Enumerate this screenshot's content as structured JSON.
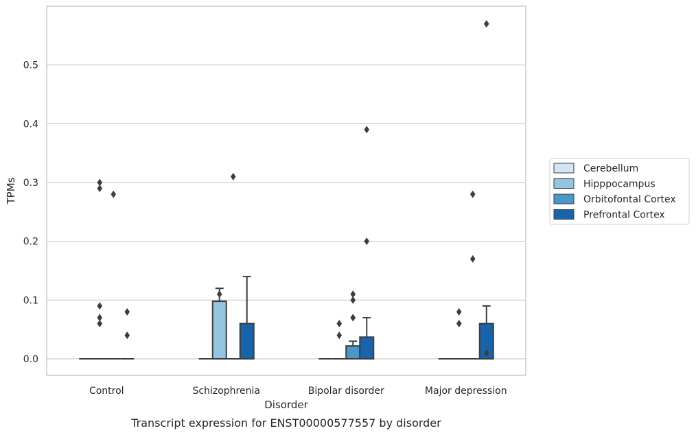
{
  "caption": "Transcript expression for ENST00000577557 by disorder",
  "chart_data": {
    "type": "box",
    "xlabel": "Disorder",
    "ylabel": "TPMs",
    "ylim": [
      -0.028,
      0.6
    ],
    "y_ticks": [
      0.0,
      0.1,
      0.2,
      0.3,
      0.4,
      0.5
    ],
    "y_tick_labels": [
      "0.0",
      "0.1",
      "0.2",
      "0.3",
      "0.4",
      "0.5"
    ],
    "grid": "horizontal",
    "legend_position": "right",
    "categories": [
      "Control",
      "Schizophrenia",
      "Bipolar disorder",
      "Major depression"
    ],
    "series": [
      {
        "name": "Cerebellum",
        "color": "#d3e4f3",
        "boxes": [
          {
            "q1": 0,
            "median": 0,
            "q3": 0,
            "whisker_low": 0,
            "whisker_high": 0,
            "outliers": []
          },
          {
            "q1": 0,
            "median": 0,
            "q3": 0,
            "whisker_low": 0,
            "whisker_high": 0,
            "outliers": []
          },
          {
            "q1": 0,
            "median": 0,
            "q3": 0,
            "whisker_low": 0,
            "whisker_high": 0,
            "outliers": []
          },
          {
            "q1": 0,
            "median": 0,
            "q3": 0,
            "whisker_low": 0,
            "whisker_high": 0,
            "outliers": []
          }
        ]
      },
      {
        "name": "Hipppocampus",
        "color": "#94c4df",
        "boxes": [
          {
            "q1": 0,
            "median": 0,
            "q3": 0,
            "whisker_low": 0,
            "whisker_high": 0,
            "outliers": [
              0.09,
              0.07,
              0.06,
              0.3,
              0.29
            ]
          },
          {
            "q1": 0,
            "median": 0,
            "q3": 0.098,
            "whisker_low": 0,
            "whisker_high": 0.12,
            "outliers": [
              0.11
            ]
          },
          {
            "q1": 0,
            "median": 0,
            "q3": 0,
            "whisker_low": 0,
            "whisker_high": 0,
            "outliers": [
              0.06,
              0.04
            ]
          },
          {
            "q1": 0,
            "median": 0,
            "q3": 0,
            "whisker_low": 0,
            "whisker_high": 0,
            "outliers": [
              0.08,
              0.06
            ]
          }
        ]
      },
      {
        "name": "Orbitofontal Cortex",
        "color": "#4a98c9",
        "boxes": [
          {
            "q1": 0,
            "median": 0,
            "q3": 0,
            "whisker_low": 0,
            "whisker_high": 0,
            "outliers": [
              0.28
            ]
          },
          {
            "q1": 0,
            "median": 0,
            "q3": 0,
            "whisker_low": 0,
            "whisker_high": 0,
            "outliers": [
              0.31
            ]
          },
          {
            "q1": 0,
            "median": 0,
            "q3": 0.022,
            "whisker_low": 0,
            "whisker_high": 0.03,
            "outliers": [
              0.07,
              0.11,
              0.1,
              0.07
            ]
          },
          {
            "q1": 0,
            "median": 0,
            "q3": 0,
            "whisker_low": 0,
            "whisker_high": 0,
            "outliers": [
              0.28,
              0.17
            ]
          }
        ]
      },
      {
        "name": "Prefrontal Cortex",
        "color": "#1764ab",
        "boxes": [
          {
            "q1": 0,
            "median": 0,
            "q3": 0,
            "whisker_low": 0,
            "whisker_high": 0,
            "outliers": [
              0.08,
              0.04
            ]
          },
          {
            "q1": 0,
            "median": 0,
            "q3": 0.06,
            "whisker_low": 0,
            "whisker_high": 0.14,
            "outliers": []
          },
          {
            "q1": 0,
            "median": 0,
            "q3": 0.037,
            "whisker_low": 0,
            "whisker_high": 0.07,
            "outliers": [
              0.39,
              0.2
            ]
          },
          {
            "q1": 0,
            "median": 0,
            "q3": 0.06,
            "whisker_low": 0,
            "whisker_high": 0.09,
            "outliers": [
              0.57,
              0.01
            ]
          }
        ]
      }
    ],
    "colors": {
      "edge": "#3d3d3d",
      "grid": "#cccccc",
      "spine": "#cccccc",
      "text": "#262626"
    }
  }
}
